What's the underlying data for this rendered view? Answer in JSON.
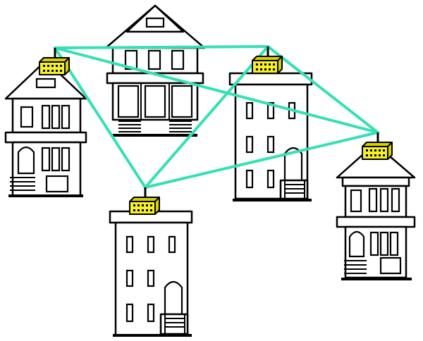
{
  "diagram": {
    "type": "mesh-network",
    "colors": {
      "link": "#35e0b4",
      "router": "#f5f02a",
      "router_side": "#d8d200",
      "outline": "#000000",
      "background": "#ffffff"
    },
    "nodes": [
      {
        "id": "r1",
        "icon": "wireless-router-icon",
        "building": "house-left"
      },
      {
        "id": "r2",
        "icon": "wireless-router-icon",
        "building": "rowhouse-center"
      },
      {
        "id": "r3",
        "icon": "wireless-router-icon",
        "building": "house-right"
      },
      {
        "id": "r4",
        "icon": "wireless-router-icon",
        "building": "rowhouse-bottom"
      }
    ],
    "links": [
      [
        "r1",
        "r2"
      ],
      [
        "r1",
        "r3"
      ],
      [
        "r1",
        "r4"
      ],
      [
        "r2",
        "r3"
      ],
      [
        "r2",
        "r4"
      ],
      [
        "r4",
        "r3"
      ]
    ]
  }
}
